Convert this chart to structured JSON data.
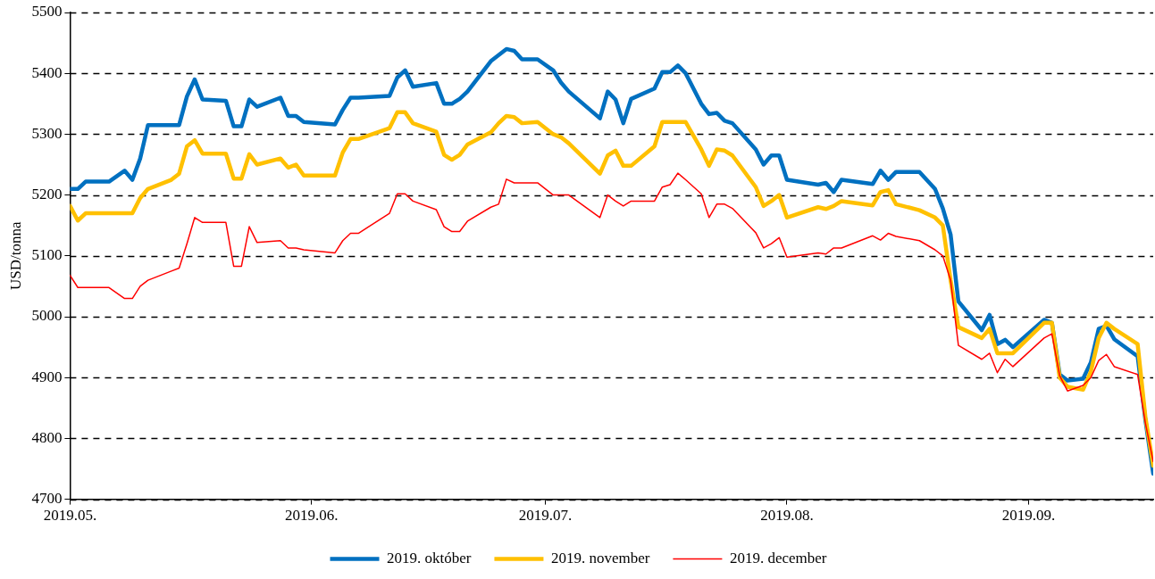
{
  "chart_data": {
    "type": "line",
    "ylabel": "USD/tonna",
    "x": [
      "2019-05-01",
      "2019-05-02",
      "2019-05-03",
      "2019-05-06",
      "2019-05-08",
      "2019-05-09",
      "2019-05-10",
      "2019-05-11",
      "2019-05-14",
      "2019-05-15",
      "2019-05-16",
      "2019-05-17",
      "2019-05-18",
      "2019-05-21",
      "2019-05-22",
      "2019-05-23",
      "2019-05-24",
      "2019-05-25",
      "2019-05-28",
      "2019-05-29",
      "2019-05-30",
      "2019-05-31",
      "2019-06-04",
      "2019-06-05",
      "2019-06-06",
      "2019-06-07",
      "2019-06-11",
      "2019-06-12",
      "2019-06-13",
      "2019-06-14",
      "2019-06-17",
      "2019-06-18",
      "2019-06-19",
      "2019-06-20",
      "2019-06-21",
      "2019-06-24",
      "2019-06-25",
      "2019-06-26",
      "2019-06-27",
      "2019-06-28",
      "2019-06-30",
      "2019-07-02",
      "2019-07-03",
      "2019-07-04",
      "2019-07-08",
      "2019-07-09",
      "2019-07-10",
      "2019-07-11",
      "2019-07-12",
      "2019-07-15",
      "2019-07-16",
      "2019-07-17",
      "2019-07-18",
      "2019-07-19",
      "2019-07-21",
      "2019-07-22",
      "2019-07-23",
      "2019-07-24",
      "2019-07-25",
      "2019-07-28",
      "2019-07-29",
      "2019-07-30",
      "2019-07-31",
      "2019-08-01",
      "2019-08-05",
      "2019-08-06",
      "2019-08-07",
      "2019-08-08",
      "2019-08-12",
      "2019-08-13",
      "2019-08-14",
      "2019-08-15",
      "2019-08-18",
      "2019-08-20",
      "2019-08-21",
      "2019-08-22",
      "2019-08-23",
      "2019-08-26",
      "2019-08-27",
      "2019-08-28",
      "2019-08-29",
      "2019-08-30",
      "2019-09-03",
      "2019-09-04",
      "2019-09-05",
      "2019-09-06",
      "2019-09-08",
      "2019-09-09",
      "2019-09-10",
      "2019-09-11",
      "2019-09-12",
      "2019-09-15",
      "2019-09-16",
      "2019-09-17"
    ],
    "series": [
      {
        "name": "2019. október",
        "color": "#0070c0",
        "values": [
          5210,
          5210,
          5222,
          5222,
          5240,
          5225,
          5260,
          5315,
          5315,
          5315,
          5362,
          5390,
          5357,
          5355,
          5313,
          5313,
          5357,
          5345,
          5360,
          5330,
          5330,
          5320,
          5316,
          5340,
          5360,
          5360,
          5363,
          5393,
          5405,
          5378,
          5384,
          5350,
          5350,
          5358,
          5370,
          5420,
          5430,
          5440,
          5437,
          5423,
          5423,
          5405,
          5385,
          5370,
          5326,
          5370,
          5357,
          5318,
          5358,
          5375,
          5402,
          5402,
          5413,
          5400,
          5350,
          5333,
          5335,
          5322,
          5318,
          5275,
          5250,
          5265,
          5265,
          5225,
          5217,
          5220,
          5205,
          5225,
          5218,
          5240,
          5225,
          5238,
          5238,
          5210,
          5178,
          5135,
          5025,
          4978,
          5003,
          4955,
          4962,
          4950,
          4995,
          4990,
          4905,
          4895,
          4898,
          4925,
          4980,
          4985,
          4963,
          4935,
          4830,
          4742
        ]
      },
      {
        "name": "2019. november",
        "color": "#ffc000",
        "values": [
          5182,
          5158,
          5170,
          5170,
          5170,
          5170,
          5195,
          5210,
          5225,
          5235,
          5280,
          5290,
          5268,
          5268,
          5227,
          5227,
          5267,
          5250,
          5260,
          5245,
          5250,
          5232,
          5232,
          5270,
          5292,
          5292,
          5310,
          5336,
          5336,
          5318,
          5304,
          5266,
          5258,
          5266,
          5283,
          5303,
          5318,
          5330,
          5328,
          5318,
          5320,
          5300,
          5295,
          5285,
          5235,
          5265,
          5273,
          5248,
          5248,
          5280,
          5320,
          5320,
          5320,
          5320,
          5275,
          5248,
          5275,
          5273,
          5265,
          5213,
          5182,
          5190,
          5200,
          5163,
          5180,
          5177,
          5182,
          5190,
          5183,
          5205,
          5208,
          5185,
          5175,
          5163,
          5150,
          5060,
          4983,
          4965,
          4980,
          4940,
          4940,
          4940,
          4990,
          4990,
          4900,
          4885,
          4880,
          4910,
          4965,
          4990,
          4980,
          4955,
          4835,
          4755
        ]
      },
      {
        "name": "2019. december",
        "color": "#ff0000",
        "values": [
          5068,
          5048,
          5048,
          5048,
          5030,
          5030,
          5050,
          5060,
          5075,
          5080,
          5120,
          5163,
          5155,
          5155,
          5083,
          5083,
          5148,
          5122,
          5125,
          5113,
          5113,
          5110,
          5105,
          5125,
          5137,
          5137,
          5170,
          5202,
          5202,
          5190,
          5176,
          5148,
          5140,
          5140,
          5157,
          5180,
          5185,
          5226,
          5220,
          5220,
          5220,
          5200,
          5200,
          5200,
          5163,
          5200,
          5190,
          5182,
          5190,
          5190,
          5213,
          5217,
          5236,
          5225,
          5202,
          5163,
          5185,
          5185,
          5178,
          5138,
          5113,
          5120,
          5130,
          5098,
          5105,
          5103,
          5113,
          5113,
          5133,
          5126,
          5137,
          5132,
          5125,
          5110,
          5100,
          5060,
          4953,
          4930,
          4940,
          4908,
          4930,
          4918,
          4965,
          4972,
          4903,
          4878,
          4887,
          4900,
          4928,
          4938,
          4918,
          4905,
          4825,
          4762
        ]
      }
    ],
    "xlim": [
      "2019-05-01",
      "2019-09-17"
    ],
    "xticks": [
      {
        "value": "2019-05-01",
        "label": "2019.05."
      },
      {
        "value": "2019-06-01",
        "label": "2019.06."
      },
      {
        "value": "2019-07-01",
        "label": "2019.07."
      },
      {
        "value": "2019-08-01",
        "label": "2019.08."
      },
      {
        "value": "2019-09-01",
        "label": "2019.09."
      }
    ],
    "ylim": [
      4700,
      5500
    ],
    "yticks": [
      4700,
      4800,
      4900,
      5000,
      5100,
      5200,
      5300,
      5400,
      5500
    ],
    "grid": "y",
    "legend": "bottom",
    "marker": "none",
    "line_style": "solid"
  }
}
